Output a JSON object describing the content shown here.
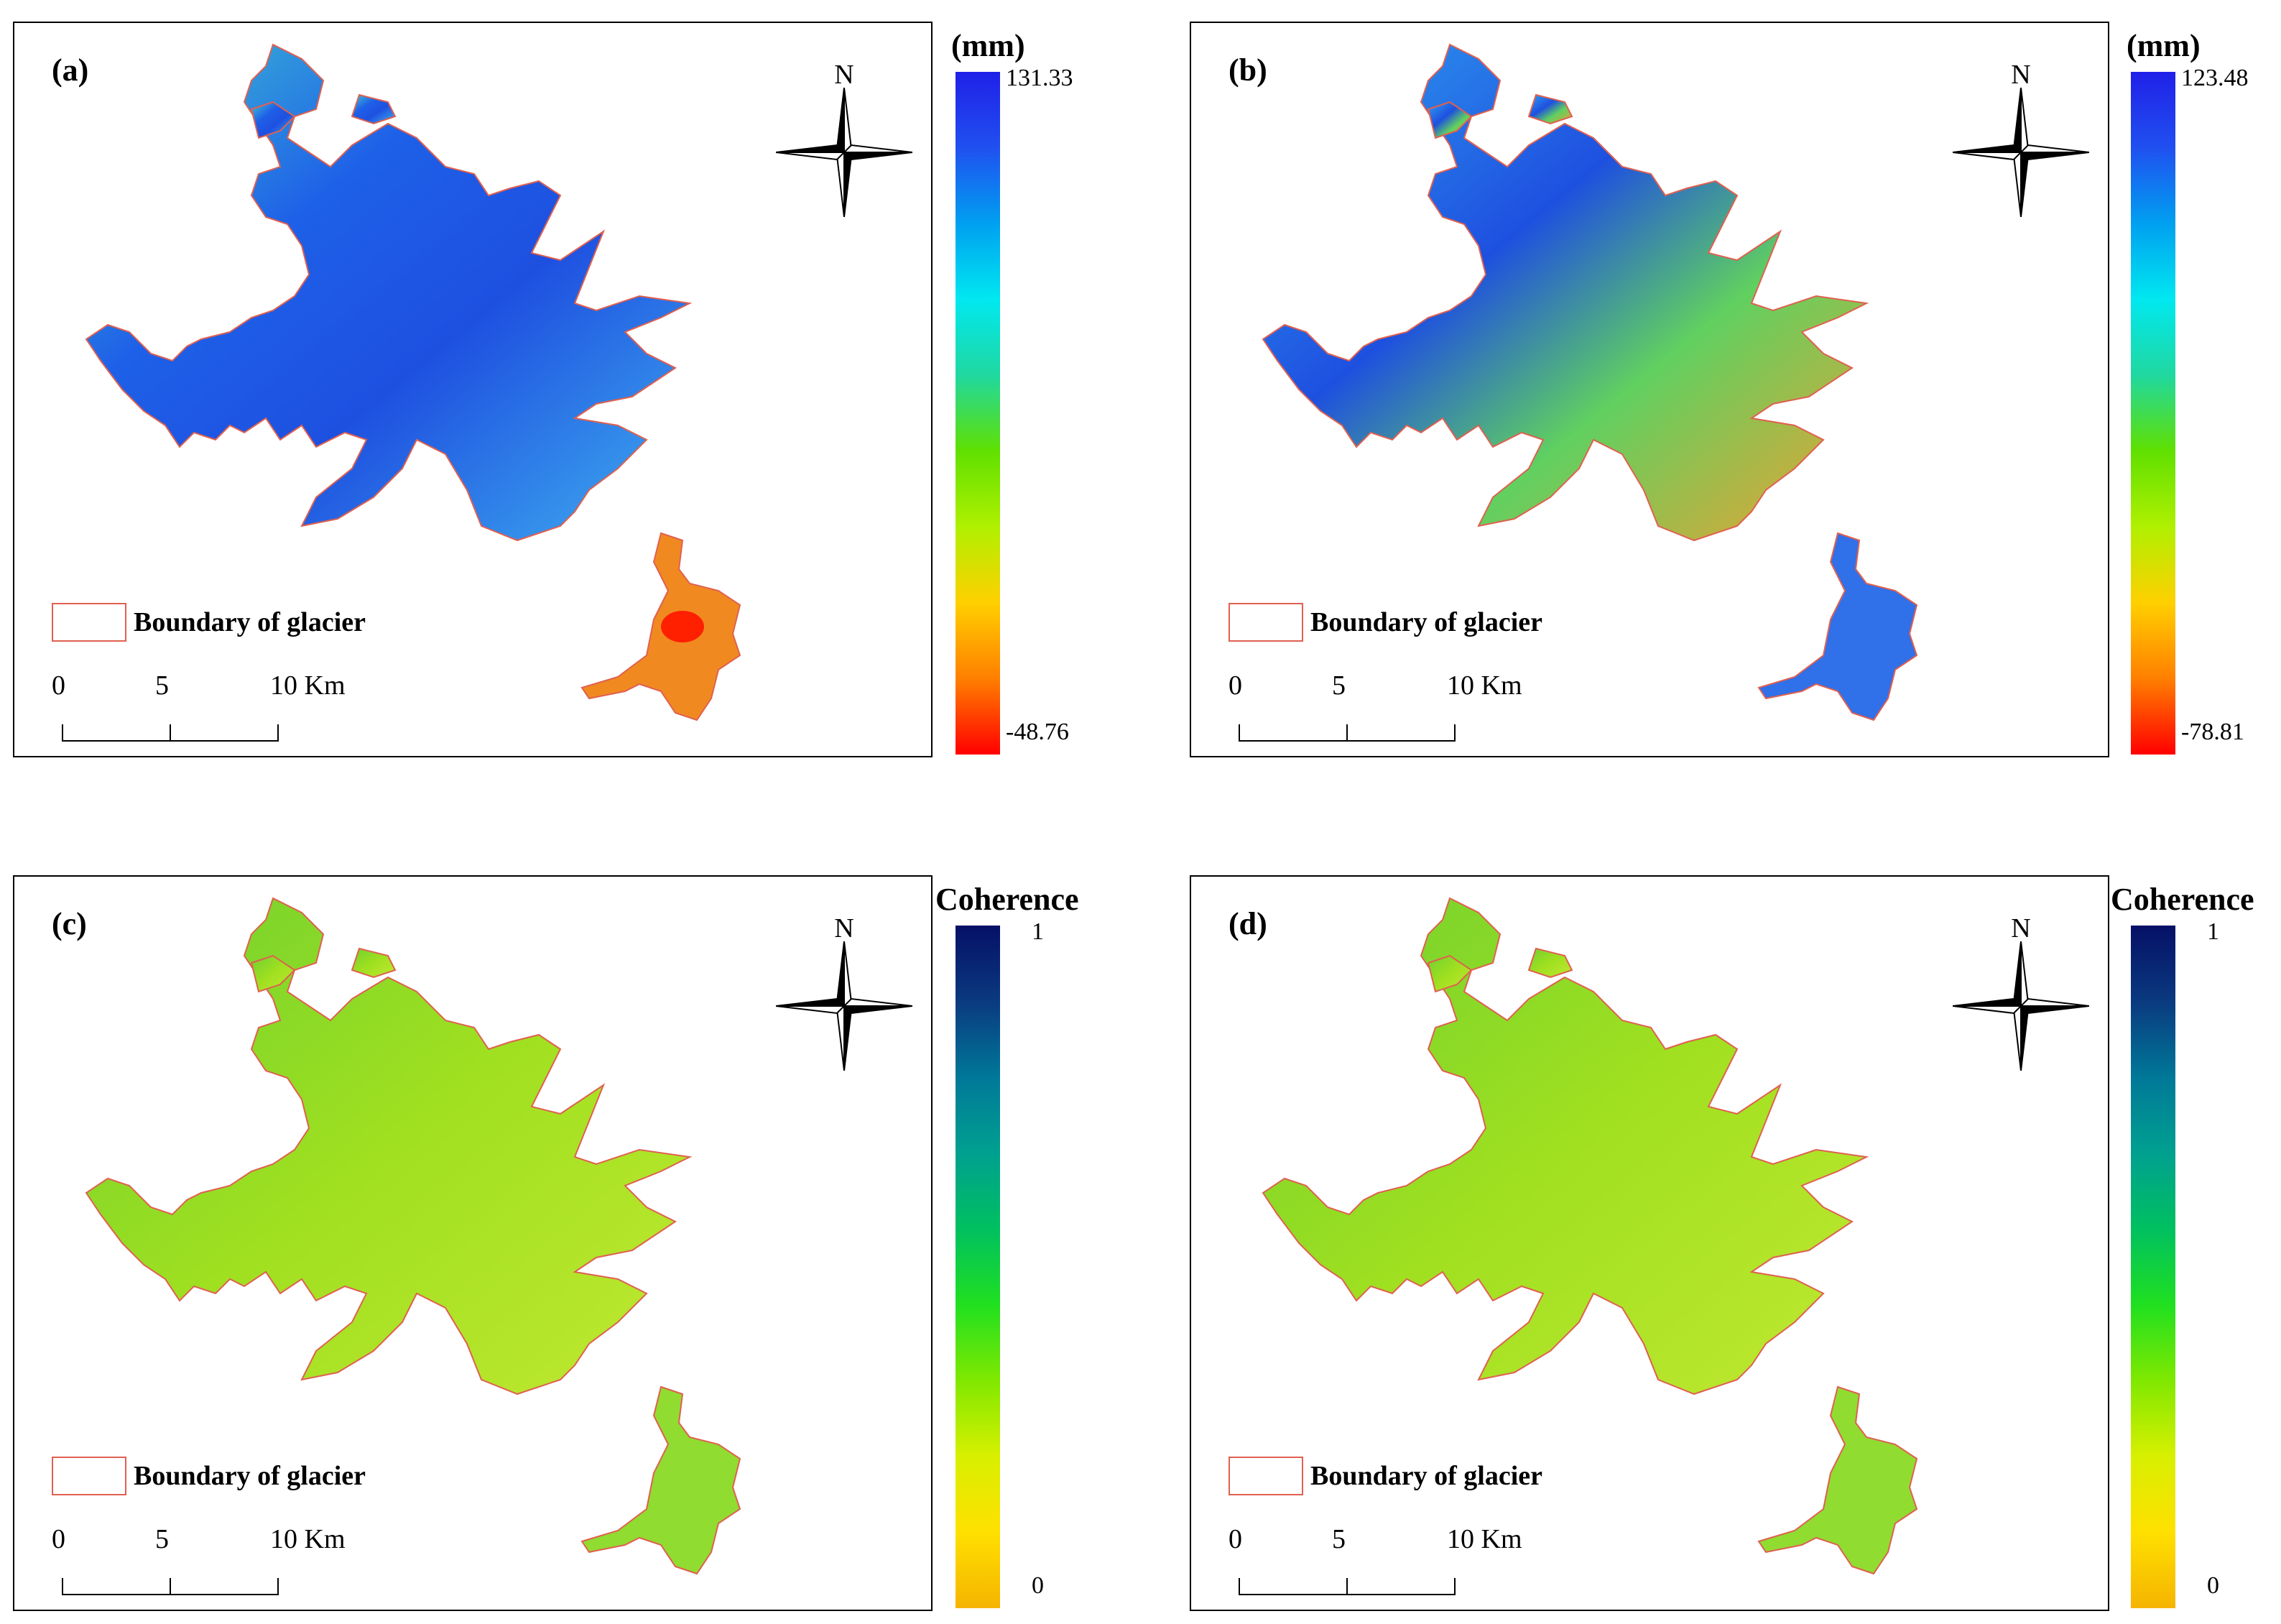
{
  "panels": [
    {
      "label": "(a)",
      "type": "deformation",
      "color_scale": {
        "title": "(mm)",
        "max": "131.33",
        "min": "-48.76",
        "colors": [
          "#ff0000",
          "#ff7f00",
          "#ffd000",
          "#b0f000",
          "#60e000",
          "#20d8a0",
          "#00e8f0",
          "#00a0f0",
          "#2050f0",
          "#2020e8"
        ]
      },
      "hotspots": "south-east satellite glacier negative"
    },
    {
      "label": "(b)",
      "type": "deformation",
      "color_scale": {
        "title": "(mm)",
        "max": "123.48",
        "min": "-78.81",
        "colors": [
          "#ff0000",
          "#ff7f00",
          "#ffd000",
          "#b0f000",
          "#60e000",
          "#20d8a0",
          "#00e8f0",
          "#00a0f0",
          "#2050f0",
          "#2020e8"
        ]
      }
    },
    {
      "label": "(c)",
      "type": "coherence",
      "color_scale": {
        "title": "Coherence",
        "max": "1",
        "min": "0",
        "colors": [
          "#f5b400",
          "#ffe000",
          "#d8f000",
          "#80e800",
          "#20e020",
          "#00c060",
          "#00a090",
          "#007898",
          "#0a3a80",
          "#061066"
        ]
      }
    },
    {
      "label": "(d)",
      "type": "coherence",
      "color_scale": {
        "title": "Coherence",
        "max": "1",
        "min": "0",
        "colors": [
          "#f5b400",
          "#ffe000",
          "#d8f000",
          "#80e800",
          "#20e020",
          "#00c060",
          "#00a090",
          "#007898",
          "#0a3a80",
          "#061066"
        ]
      }
    }
  ],
  "compass": {
    "north_label": "N"
  },
  "legend": {
    "boundary_label": "Boundary of glacier",
    "boundary_color": "#e06050"
  },
  "scalebar": {
    "ticks": [
      "0",
      "5",
      "10 Km"
    ]
  }
}
